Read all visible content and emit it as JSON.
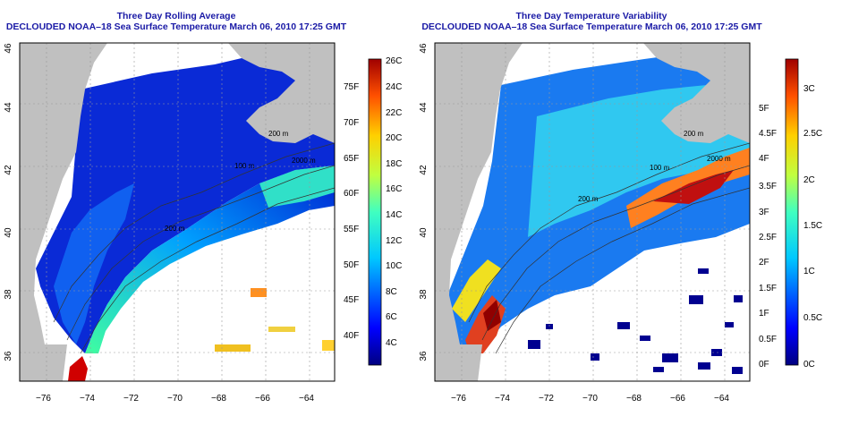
{
  "left_panel": {
    "title_line1": "Three Day Rolling Average",
    "title_line2": "DECLOUDED NOAA–18 Sea Surface Temperature March 06, 2010 17:25 GMT",
    "colorbar_c": [
      "26C",
      "24C",
      "22C",
      "20C",
      "18C",
      "16C",
      "14C",
      "12C",
      "10C",
      "8C",
      "6C",
      "4C"
    ],
    "colorbar_f": [
      "75F",
      "70F",
      "65F",
      "60F",
      "55F",
      "50F",
      "45F",
      "40F"
    ],
    "contour_labels": [
      "2000 m",
      "100 m",
      "200 m",
      "200 m"
    ]
  },
  "right_panel": {
    "title_line1": "Three Day Temperature Variability",
    "title_line2": "DECLOUDED NOAA–18 Sea Surface Temperature March 06, 2010 17:25 GMT",
    "colorbar_c": [
      "3C",
      "2.5C",
      "2C",
      "1.5C",
      "1C",
      "0.5C",
      "0C"
    ],
    "colorbar_f": [
      "5F",
      "4.5F",
      "4F",
      "3.5F",
      "3F",
      "2.5F",
      "2F",
      "1.5F",
      "1F",
      "0.5F",
      "0F"
    ],
    "contour_labels": [
      "200 m",
      "100 m",
      "2000 m",
      "200 m"
    ]
  },
  "axes": {
    "x_ticks": [
      "−76",
      "−74",
      "−72",
      "−70",
      "−68",
      "−66",
      "−64"
    ],
    "y_ticks": [
      "46",
      "44",
      "42",
      "40",
      "38",
      "36"
    ]
  },
  "colors": {
    "title": "#1a1aa6",
    "land": "#c0c0c0",
    "no_data": "#ffffff",
    "deep_blue": "#0022cc"
  }
}
